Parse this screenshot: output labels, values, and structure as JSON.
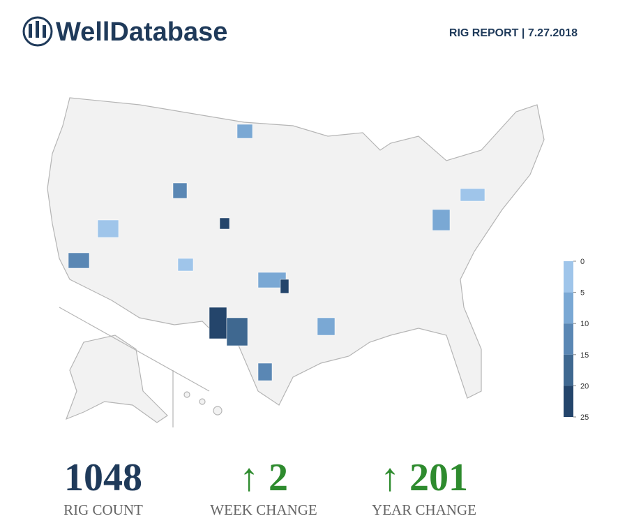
{
  "header": {
    "logo_text": "WellDatabase",
    "report_title": "RIG REPORT | 7.27.2018"
  },
  "legend": {
    "ticks": [
      0,
      5,
      10,
      15,
      20,
      25
    ],
    "colors": [
      "#9fc5ea",
      "#7aa8d4",
      "#5a87b4",
      "#3f6890",
      "#24456b"
    ]
  },
  "stats": [
    {
      "value": 1048,
      "label": "RIG COUNT",
      "color": "#1f3a5a"
    },
    {
      "arrow": "↑",
      "value": 2,
      "label": "WEEK CHANGE",
      "color": "#2e8b2e"
    },
    {
      "arrow": "↑",
      "value": 201,
      "label": "YEAR CHANGE",
      "color": "#2e8b2e"
    }
  ]
}
